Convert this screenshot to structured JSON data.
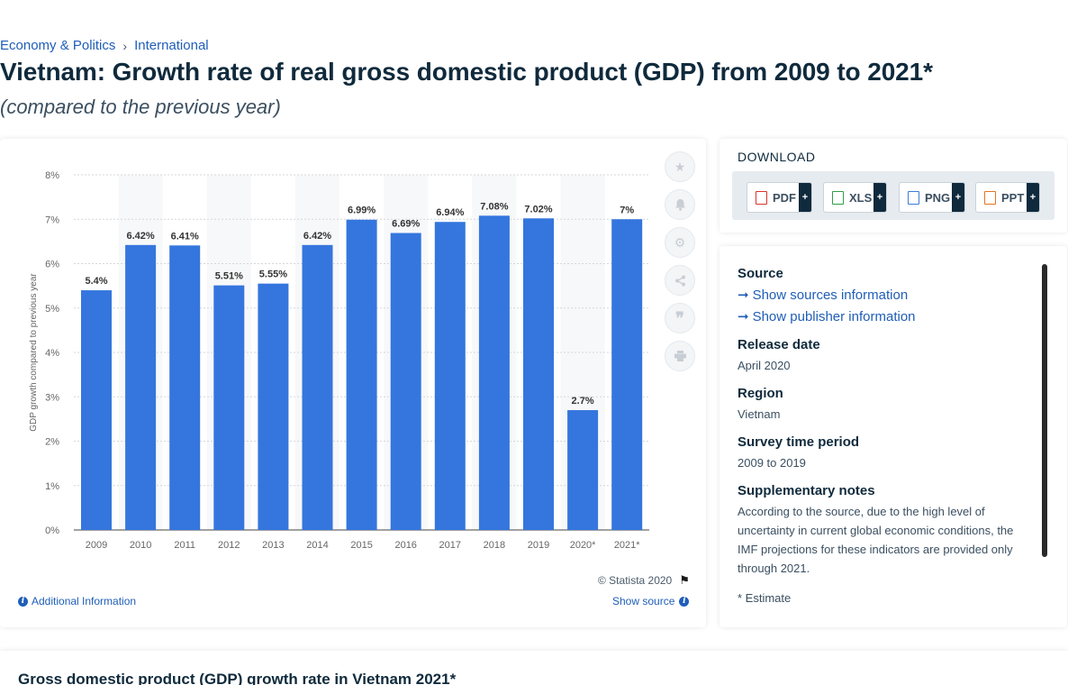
{
  "breadcrumb": {
    "first": "Economy & Politics",
    "separator": "›",
    "second": "International"
  },
  "title": "Vietnam: Growth rate of real gross domestic product (GDP) from 2009 to 2021*",
  "subtitle": "(compared to the previous year)",
  "chart_data": {
    "type": "bar",
    "categories": [
      "2009",
      "2010",
      "2011",
      "2012",
      "2013",
      "2014",
      "2015",
      "2016",
      "2017",
      "2018",
      "2019",
      "2020*",
      "2021*"
    ],
    "values": [
      5.4,
      6.42,
      6.41,
      5.51,
      5.55,
      6.42,
      6.99,
      6.69,
      6.94,
      7.08,
      7.02,
      2.7,
      7
    ],
    "value_labels": [
      "5.4%",
      "6.42%",
      "6.41%",
      "5.51%",
      "5.55%",
      "6.42%",
      "6.99%",
      "6.69%",
      "6.94%",
      "7.08%",
      "7.02%",
      "2.7%",
      "7%"
    ],
    "ylabel": "GDP growth compared to previous year",
    "ylim": [
      0,
      8
    ],
    "yticks": [
      "0%",
      "1%",
      "2%",
      "3%",
      "4%",
      "5%",
      "6%",
      "7%",
      "8%"
    ],
    "grid": true,
    "bar_color": "#3576de"
  },
  "chart_footer": {
    "copyright": "© Statista 2020",
    "additional_info": "Additional Information",
    "show_source": "Show source"
  },
  "tools": [
    "star-icon",
    "bell-icon",
    "gear-icon",
    "share-icon",
    "quote-icon",
    "print-icon"
  ],
  "download": {
    "title": "DOWNLOAD",
    "buttons": [
      {
        "label": "PDF",
        "color": "#d9342b"
      },
      {
        "label": "XLS",
        "color": "#2e9e46"
      },
      {
        "label": "PNG",
        "color": "#3b7bd8"
      },
      {
        "label": "PPT",
        "color": "#e8731e"
      }
    ],
    "plus": "+"
  },
  "info": {
    "source_label": "Source",
    "show_sources": "Show sources information",
    "show_publisher": "Show publisher information",
    "release_label": "Release date",
    "release_value": "April 2020",
    "region_label": "Region",
    "region_value": "Vietnam",
    "survey_label": "Survey time period",
    "survey_value": "2009 to 2019",
    "notes_label": "Supplementary notes",
    "notes_value": "According to the source, due to the high level of uncertainty in current global economic conditions, the IMF projections for these indicators are provided only through 2021.",
    "estimate_note": "* Estimate"
  },
  "bottom": {
    "title": "Gross domestic product (GDP) growth rate in Vietnam 2021*"
  }
}
